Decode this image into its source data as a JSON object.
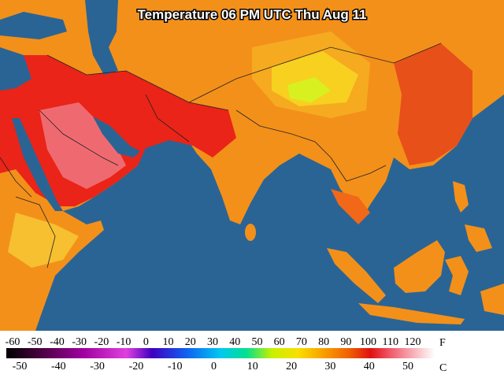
{
  "title": "Temperature 06 PM UTC Thu Aug 11",
  "legend": {
    "fahrenheit": {
      "unit": "F",
      "labels": [
        -60,
        -50,
        -40,
        -30,
        -20,
        -10,
        0,
        10,
        20,
        30,
        40,
        50,
        60,
        70,
        80,
        90,
        100,
        110,
        120
      ]
    },
    "celsius": {
      "unit": "C",
      "labels": [
        -50,
        -40,
        -30,
        -20,
        -10,
        0,
        10,
        20,
        30,
        40,
        50
      ]
    }
  }
}
